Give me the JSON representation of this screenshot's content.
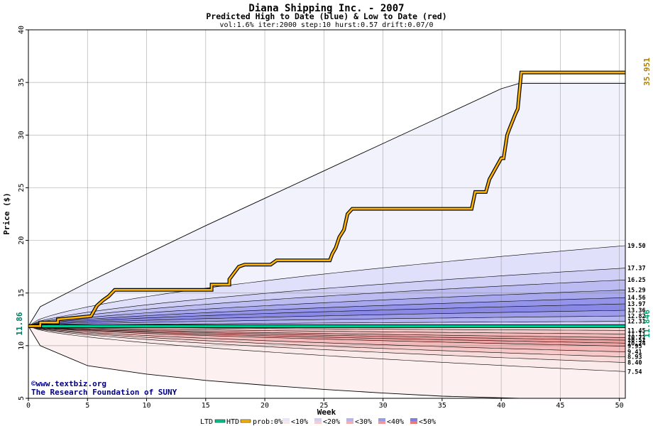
{
  "chart_data": {
    "type": "area",
    "title": "Diana Shipping Inc. - 2007",
    "subtitle": "Predicted High to Date (blue) &  Low to Date (red)",
    "params": "vol:1.6% iter:2000 step:10 hurst:0.57 drift:0.07/0",
    "xlabel": "Week",
    "ylabel": "Price ($)",
    "xlim": [
      0,
      50.5
    ],
    "ylim": [
      5,
      40
    ],
    "x_ticks": [
      0,
      5,
      10,
      15,
      20,
      25,
      30,
      35,
      40,
      45,
      50
    ],
    "y_ticks": [
      5,
      10,
      15,
      20,
      25,
      30,
      35,
      40
    ],
    "grid": true,
    "start_price_label": "11.86",
    "current_price_label": "11.846",
    "high_to_date_label": "35.951",
    "start_price": 11.86,
    "current_price": 11.846,
    "upper_bands": [
      {
        "label": "19.50",
        "end": 19.5,
        "prob": "<10%",
        "color": "#e0e0fa"
      },
      {
        "label": "17.37",
        "end": 17.37,
        "prob": "<20%",
        "color": "#d0d0f6"
      },
      {
        "label": "16.25",
        "end": 16.25,
        "prob": "<20%",
        "color": "#bcbcf2"
      },
      {
        "label": "15.29",
        "end": 15.29,
        "prob": "<30%",
        "color": "#a8a8ee"
      },
      {
        "label": "14.56",
        "end": 14.56,
        "prob": "<40%",
        "color": "#9494ea"
      },
      {
        "label": "13.97",
        "end": 13.97,
        "prob": "<40%",
        "color": "#8a8ae6"
      },
      {
        "label": "13.36",
        "end": 13.36,
        "prob": "<50%",
        "color": "#9c9cea"
      },
      {
        "label": "12.82",
        "end": 12.82,
        "prob": "<50%",
        "color": "#b4b4f0"
      },
      {
        "label": "12.31",
        "end": 12.31,
        "prob": "<50%",
        "color": "#cacaf4"
      }
    ],
    "lower_bands": [
      {
        "label": "11.45",
        "end": 11.45,
        "color": "#f8dada"
      },
      {
        "label": "11.11",
        "end": 11.11,
        "color": "#f4c8c8"
      },
      {
        "label": "10.77",
        "end": 10.77,
        "color": "#f2b8b8"
      },
      {
        "label": "10.52",
        "end": 10.52,
        "color": "#f0a8a8"
      },
      {
        "label": "10.24",
        "end": 10.24,
        "color": "#ee9c9c"
      },
      {
        "label": "9.95",
        "end": 9.95,
        "color": "#f0a4a4"
      },
      {
        "label": "9.41",
        "end": 9.41,
        "color": "#f4b8b8"
      },
      {
        "label": "8.93",
        "end": 8.93,
        "color": "#f6c8c8"
      },
      {
        "label": "8.40",
        "end": 8.4,
        "color": "#f8dada"
      },
      {
        "label": "7.54",
        "end": 7.54,
        "color": "#fbeaea"
      }
    ],
    "upper_envelope": {
      "x": [
        0,
        1,
        5,
        10,
        15,
        20,
        25,
        30,
        35,
        40,
        41.5
      ],
      "y": [
        11.86,
        13.7,
        16.0,
        18.7,
        21.4,
        24.0,
        26.6,
        29.2,
        31.8,
        34.4,
        34.9
      ]
    },
    "lower_envelope": {
      "x": [
        0,
        1,
        5,
        10,
        15,
        20,
        25,
        30,
        35,
        41.5
      ],
      "y": [
        11.86,
        10.0,
        8.1,
        7.3,
        6.7,
        6.25,
        5.85,
        5.5,
        5.2,
        5.0
      ]
    },
    "high_to_date": {
      "x": [
        0,
        1,
        1,
        2.5,
        2.5,
        5.3,
        5.8,
        6.3,
        6.8,
        7.3,
        15.5,
        15.5,
        17,
        17,
        17.8,
        18.3,
        20.5,
        21,
        25.5,
        25.7,
        26,
        26.3,
        26.7,
        27,
        27.4,
        37.5,
        37.8,
        38.7,
        39,
        40,
        40.2,
        40.5,
        40.7,
        41.2,
        41.4,
        41.7,
        50.5
      ],
      "y": [
        11.86,
        11.86,
        12.2,
        12.2,
        12.5,
        12.8,
        13.8,
        14.3,
        14.7,
        15.3,
        15.3,
        15.8,
        15.8,
        16.3,
        17.5,
        17.7,
        17.7,
        18.1,
        18.1,
        18.7,
        19.3,
        20.3,
        21.0,
        22.5,
        23.0,
        23.0,
        24.6,
        24.6,
        25.8,
        27.8,
        27.8,
        30.0,
        30.6,
        32.0,
        32.5,
        35.95,
        35.95
      ]
    },
    "low_to_date": {
      "x": [
        0,
        50.5
      ],
      "y": [
        11.846,
        11.846
      ]
    },
    "legend": {
      "ltd_label": "LTD",
      "htd_label": "HTD",
      "prob_label": "prob:0%",
      "items": [
        "<10%",
        "<20%",
        "<30%",
        "<40%",
        "<50%"
      ],
      "item_colors_blue": [
        "#e6e6fa",
        "#cfcff6",
        "#b4b4f0",
        "#9a9aea",
        "#7e7ee2"
      ],
      "item_colors_red": [
        "#fbe6e6",
        "#f6cccc",
        "#f2b0b0",
        "#ee9898",
        "#ea7878"
      ],
      "ltd_color": "#00c890",
      "htd_color": "#ffb400"
    },
    "watermark_line1": "©www.textbiz.org",
    "watermark_line2": "The Research Foundation of SUNY"
  }
}
